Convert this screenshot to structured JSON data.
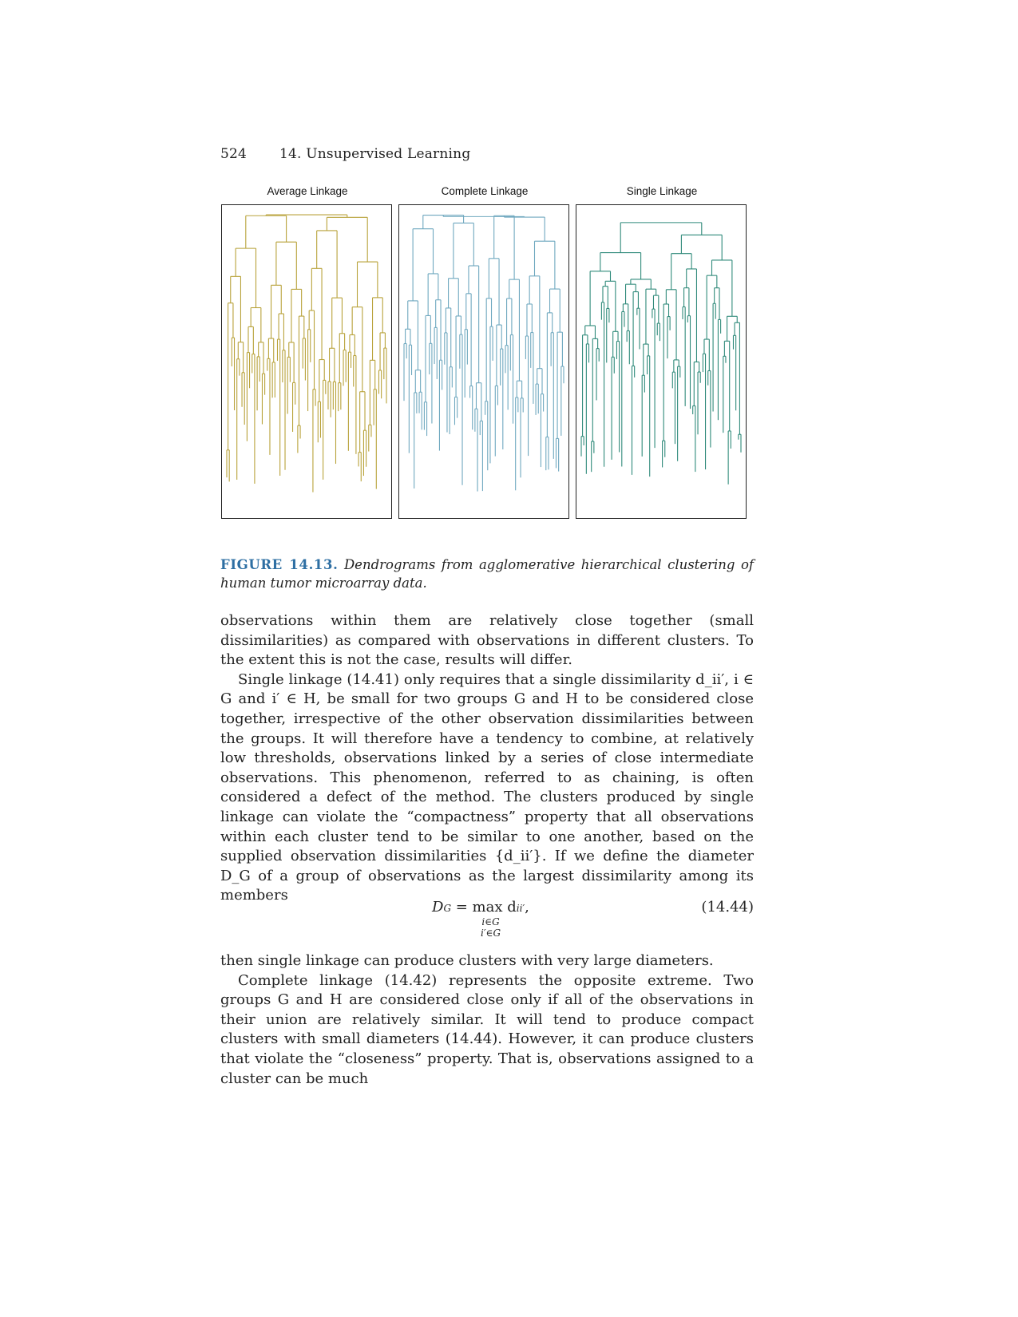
{
  "header": {
    "page_number": "524",
    "chapter": "14.  Unsupervised Learning"
  },
  "figure": {
    "panels": [
      {
        "title": "Average Linkage",
        "color": "#b8a23a"
      },
      {
        "title": "Complete Linkage",
        "color": "#6fa8bf"
      },
      {
        "title": "Single Linkage",
        "color": "#2f8a7a"
      }
    ],
    "caption_label": "FIGURE 14.13.",
    "caption_text": "Dendrograms from agglomerative hierarchical clustering of human tumor microarray data."
  },
  "paragraphs": [
    "observations within them are relatively close together (small dissimilarities) as compared with observations in different clusters. To the extent this is not the case, results will differ.",
    "Single linkage (14.41) only requires that a single dissimilarity d_ii′, i ∈ G and i′ ∈ H, be small for two groups G and H to be considered close together, irrespective of the other observation dissimilarities between the groups. It will therefore have a tendency to combine, at relatively low thresholds, observations linked by a series of close intermediate observations. This phenomenon, referred to as chaining, is often considered a defect of the method. The clusters produced by single linkage can violate the “compactness” property that all observations within each cluster tend to be similar to one another, based on the supplied observation dissimilarities {d_ii′}. If we define the diameter D_G of a group of observations as the largest dissimilarity among its members"
  ],
  "equation": {
    "lhs": "D",
    "lhs_sub": "G",
    "eq": " = max d",
    "rhs_sub": "ii′",
    "tail": ",",
    "under1": "i∈G",
    "under2": "i′∈G",
    "number": "(14.44)"
  },
  "paragraphs_after": [
    "then single linkage can produce clusters with very large diameters.",
    "Complete linkage (14.42) represents the opposite extreme. Two groups G and H are considered close only if all of the observations in their union are relatively similar. It will tend to produce compact clusters with small diameters (14.44). However, it can produce clusters that violate the “closeness” property. That is, observations assigned to a cluster can be much"
  ]
}
